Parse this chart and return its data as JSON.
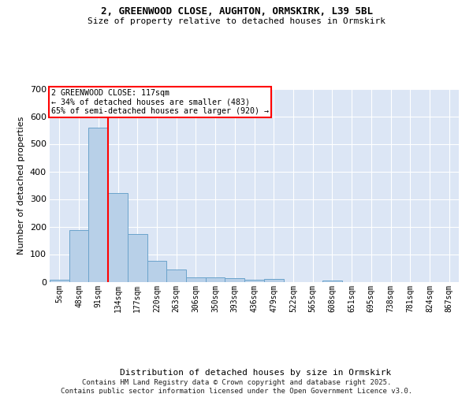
{
  "title_line1": "2, GREENWOOD CLOSE, AUGHTON, ORMSKIRK, L39 5BL",
  "title_line2": "Size of property relative to detached houses in Ormskirk",
  "xlabel": "Distribution of detached houses by size in Ormskirk",
  "ylabel": "Number of detached properties",
  "bar_values": [
    8,
    188,
    558,
    322,
    172,
    77,
    44,
    15,
    15,
    12,
    8,
    10,
    0,
    0,
    5,
    0,
    0,
    0,
    0,
    0,
    0
  ],
  "categories": [
    "5sqm",
    "48sqm",
    "91sqm",
    "134sqm",
    "177sqm",
    "220sqm",
    "263sqm",
    "306sqm",
    "350sqm",
    "393sqm",
    "436sqm",
    "479sqm",
    "522sqm",
    "565sqm",
    "608sqm",
    "651sqm",
    "695sqm",
    "738sqm",
    "781sqm",
    "824sqm",
    "867sqm"
  ],
  "bar_color": "#b8d0e8",
  "bar_edge_color": "#6ba3cb",
  "background_color": "#dce6f5",
  "grid_color": "#ffffff",
  "vline_color": "red",
  "annotation_text": "2 GREENWOOD CLOSE: 117sqm\n← 34% of detached houses are smaller (483)\n65% of semi-detached houses are larger (920) →",
  "annotation_box_color": "white",
  "annotation_border_color": "red",
  "ylim": [
    0,
    700
  ],
  "yticks": [
    0,
    100,
    200,
    300,
    400,
    500,
    600,
    700
  ],
  "footer_line1": "Contains HM Land Registry data © Crown copyright and database right 2025.",
  "footer_line2": "Contains public sector information licensed under the Open Government Licence v3.0."
}
